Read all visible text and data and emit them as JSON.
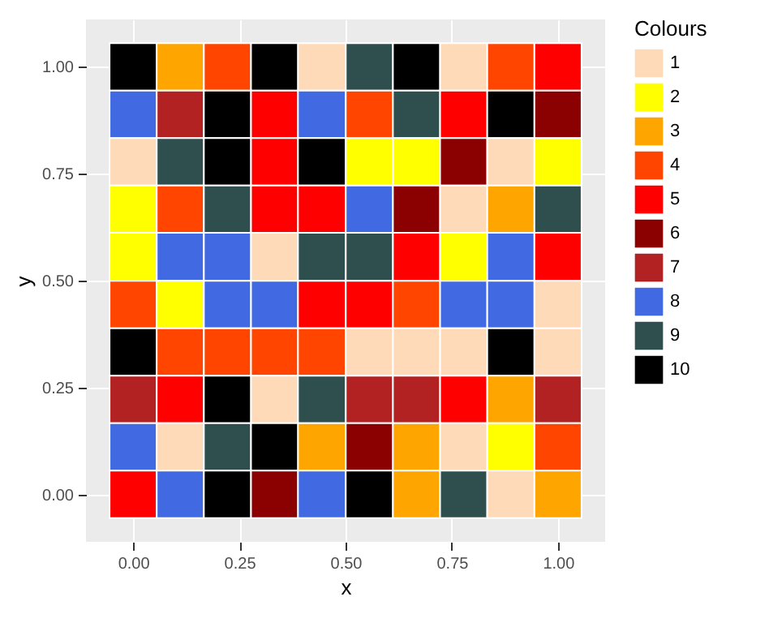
{
  "chart_data": {
    "type": "heatmap",
    "xlabel": "x",
    "ylabel": "y",
    "legend_title": "Colours",
    "grid": true,
    "x": [
      0,
      0.111,
      0.222,
      0.333,
      0.444,
      0.556,
      0.667,
      0.778,
      0.889,
      1
    ],
    "y": [
      1,
      0.889,
      0.778,
      0.667,
      0.556,
      0.444,
      0.333,
      0.222,
      0.111,
      0
    ],
    "xlim": [
      -0.111,
      1.111
    ],
    "ylim": [
      -0.111,
      1.111
    ],
    "xticks": [
      {
        "value": 0,
        "label": "0.00"
      },
      {
        "value": 0.25,
        "label": "0.25"
      },
      {
        "value": 0.5,
        "label": "0.50"
      },
      {
        "value": 0.75,
        "label": "0.75"
      },
      {
        "value": 1,
        "label": "1.00"
      }
    ],
    "yticks": [
      {
        "value": 0,
        "label": "0.00"
      },
      {
        "value": 0.25,
        "label": "0.25"
      },
      {
        "value": 0.5,
        "label": "0.50"
      },
      {
        "value": 0.75,
        "label": "0.75"
      },
      {
        "value": 1,
        "label": "1.00"
      }
    ],
    "cticks": [
      1,
      2,
      3,
      4,
      5,
      6,
      7,
      8,
      9,
      10
    ],
    "colors": [
      "#ffdab9",
      "#ffff00",
      "#ffa500",
      "#ff4500",
      "#ff0000",
      "#8b0000",
      "#b22222",
      "#4169e1",
      "#2f4f4f",
      "#000000"
    ],
    "cells": [
      [
        10,
        3,
        4,
        10,
        1,
        9,
        10,
        1,
        4,
        5
      ],
      [
        8,
        7,
        10,
        5,
        8,
        4,
        9,
        5,
        10,
        6
      ],
      [
        1,
        9,
        10,
        5,
        10,
        2,
        2,
        6,
        1,
        2
      ],
      [
        2,
        4,
        9,
        5,
        5,
        8,
        6,
        1,
        3,
        9
      ],
      [
        2,
        8,
        8,
        1,
        9,
        9,
        5,
        2,
        8,
        5
      ],
      [
        4,
        2,
        8,
        8,
        5,
        5,
        4,
        8,
        8,
        1
      ],
      [
        10,
        4,
        4,
        4,
        4,
        1,
        1,
        1,
        10,
        1
      ],
      [
        7,
        5,
        10,
        1,
        9,
        7,
        7,
        5,
        3,
        7
      ],
      [
        8,
        1,
        9,
        10,
        3,
        6,
        3,
        1,
        2,
        4
      ],
      [
        5,
        8,
        10,
        6,
        8,
        10,
        3,
        9,
        1,
        3
      ]
    ]
  }
}
